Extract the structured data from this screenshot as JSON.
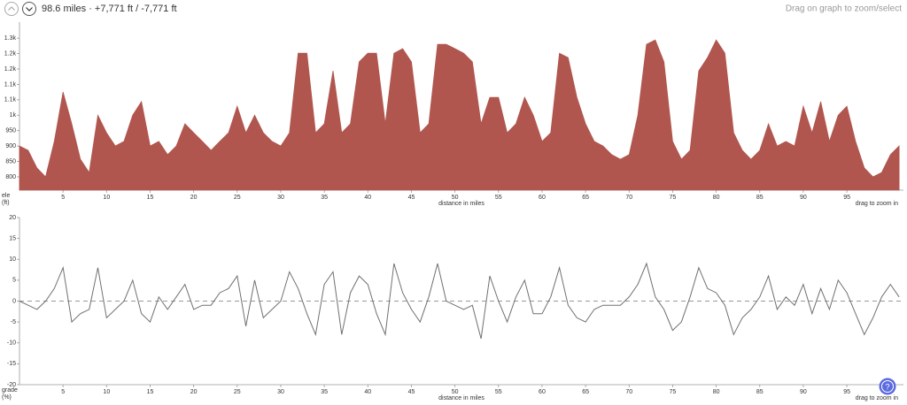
{
  "header": {
    "summary": "98.6 miles · +7,771 ft / -7,771 ft",
    "hint": "Drag on graph to zoom/select",
    "help": "?"
  },
  "chart_data": [
    {
      "type": "area",
      "ylabel": [
        "ele",
        "(ft)"
      ],
      "xlabel": "distance in miles",
      "note": "drag to zoom in",
      "color": "#b0564e",
      "x": [
        0,
        1,
        2,
        3,
        4,
        5,
        6,
        7,
        8,
        9,
        10,
        11,
        12,
        13,
        14,
        15,
        16,
        17,
        18,
        19,
        20,
        21,
        22,
        23,
        24,
        25,
        26,
        27,
        28,
        29,
        30,
        31,
        32,
        33,
        34,
        35,
        36,
        37,
        38,
        39,
        40,
        41,
        42,
        43,
        44,
        45,
        46,
        47,
        48,
        49,
        50,
        51,
        52,
        53,
        54,
        55,
        56,
        57,
        58,
        59,
        60,
        61,
        62,
        63,
        64,
        65,
        66,
        67,
        68,
        69,
        70,
        71,
        72,
        73,
        74,
        75,
        76,
        77,
        78,
        79,
        80,
        81,
        82,
        83,
        84,
        85,
        86,
        87,
        88,
        89,
        90,
        91,
        92,
        93,
        94,
        95,
        96,
        97,
        98,
        99,
        100,
        101
      ],
      "values": [
        900,
        886,
        829,
        800,
        915,
        1075,
        972,
        857,
        814,
        1000,
        943,
        900,
        915,
        1000,
        1044,
        900,
        915,
        872,
        900,
        972,
        943,
        915,
        886,
        915,
        943,
        1029,
        943,
        1000,
        943,
        915,
        900,
        943,
        1201,
        1201,
        943,
        972,
        1144,
        943,
        972,
        1173,
        1201,
        1201,
        972,
        1201,
        1216,
        1173,
        943,
        972,
        1230,
        1230,
        1216,
        1201,
        1173,
        972,
        1058,
        1058,
        943,
        972,
        1058,
        1000,
        915,
        943,
        1201,
        1187,
        1058,
        972,
        915,
        900,
        872,
        857,
        872,
        1000,
        1230,
        1244,
        1173,
        915,
        857,
        886,
        1144,
        1187,
        1244,
        1201,
        943,
        886,
        857,
        886,
        972,
        900,
        915,
        900,
        1029,
        943,
        1044,
        915,
        1000,
        1029,
        915,
        829,
        800,
        814,
        872,
        900
      ],
      "xlim": [
        0,
        101.5
      ],
      "ylim": [
        757,
        1302
      ],
      "xticks": [
        5,
        10,
        15,
        20,
        25,
        30,
        35,
        40,
        45,
        50,
        55,
        60,
        65,
        70,
        75,
        80,
        85,
        90,
        95
      ],
      "yticks": [
        800,
        850,
        900,
        950,
        {
          "value": 1000,
          "label": "1k"
        },
        {
          "value": 1050,
          "label": "1.1k"
        },
        {
          "value": 1100,
          "label": "1.1k"
        },
        {
          "value": 1150,
          "label": "1.2k"
        },
        {
          "value": 1200,
          "label": "1.2k"
        },
        {
          "value": 1250,
          "label": "1.3k"
        }
      ]
    },
    {
      "type": "line",
      "ylabel": [
        "grade",
        "(%)"
      ],
      "xlabel": "distance in miles",
      "note": "drag to zoom in",
      "color": "#707070",
      "zero_line": true,
      "x": [
        0,
        1,
        2,
        3,
        4,
        5,
        6,
        7,
        8,
        9,
        10,
        11,
        12,
        13,
        14,
        15,
        16,
        17,
        18,
        19,
        20,
        21,
        22,
        23,
        24,
        25,
        26,
        27,
        28,
        29,
        30,
        31,
        32,
        33,
        34,
        35,
        36,
        37,
        38,
        39,
        40,
        41,
        42,
        43,
        44,
        45,
        46,
        47,
        48,
        49,
        50,
        51,
        52,
        53,
        54,
        55,
        56,
        57,
        58,
        59,
        60,
        61,
        62,
        63,
        64,
        65,
        66,
        67,
        68,
        69,
        70,
        71,
        72,
        73,
        74,
        75,
        76,
        77,
        78,
        79,
        80,
        81,
        82,
        83,
        84,
        85,
        86,
        87,
        88,
        89,
        90,
        91,
        92,
        93,
        94,
        95,
        96,
        97,
        98,
        99,
        100,
        101
      ],
      "values": [
        0,
        -1,
        -2,
        0,
        3,
        8,
        -5,
        -3,
        -2,
        8,
        -4,
        -2,
        0,
        5,
        -3,
        -5,
        1,
        -2,
        1,
        4,
        -2,
        -1,
        -1,
        2,
        3,
        6,
        -6,
        5,
        -4,
        -2,
        0,
        7,
        3,
        -3,
        -8,
        4,
        7,
        -8,
        2,
        6,
        4,
        -3,
        -8,
        9,
        2,
        -2,
        -5,
        1,
        9,
        0,
        -1,
        -2,
        -1,
        -9,
        6,
        0,
        -5,
        1,
        5,
        -3,
        -3,
        1,
        8,
        -1,
        -4,
        -5,
        -2,
        -1,
        -1,
        -1,
        1,
        4,
        9,
        1,
        -2,
        -7,
        -5,
        1,
        8,
        3,
        2,
        -1,
        -8,
        -4,
        -2,
        1,
        6,
        -2,
        1,
        -1,
        4,
        -3,
        3,
        -2,
        5,
        2,
        -3,
        -8,
        -4,
        1,
        4,
        1
      ],
      "xlim": [
        0,
        101.5
      ],
      "ylim": [
        -20,
        20
      ],
      "xticks": [
        5,
        10,
        15,
        20,
        25,
        30,
        35,
        40,
        45,
        50,
        55,
        60,
        65,
        70,
        75,
        80,
        85,
        90,
        95
      ],
      "yticks": [
        -20,
        -15,
        -10,
        -5,
        0,
        5,
        10,
        15,
        20
      ]
    }
  ]
}
